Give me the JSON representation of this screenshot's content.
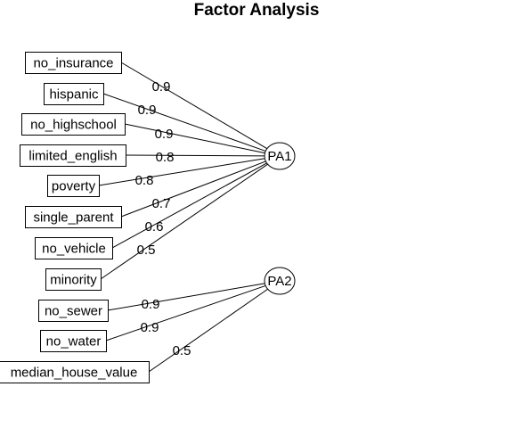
{
  "title": "Factor Analysis",
  "factors": [
    {
      "id": "PA1",
      "label": "PA1"
    },
    {
      "id": "PA2",
      "label": "PA2"
    }
  ],
  "variables": [
    {
      "id": "no_insurance",
      "label": "no_insurance"
    },
    {
      "id": "hispanic",
      "label": "hispanic"
    },
    {
      "id": "no_highschool",
      "label": "no_highschool"
    },
    {
      "id": "limited_english",
      "label": "limited_english"
    },
    {
      "id": "poverty",
      "label": "poverty"
    },
    {
      "id": "single_parent",
      "label": "single_parent"
    },
    {
      "id": "no_vehicle",
      "label": "no_vehicle"
    },
    {
      "id": "minority",
      "label": "minority"
    },
    {
      "id": "no_sewer",
      "label": "no_sewer"
    },
    {
      "id": "no_water",
      "label": "no_water"
    },
    {
      "id": "median_house_value",
      "label": "median_house_value"
    }
  ],
  "loadings": [
    {
      "factor": "PA1",
      "variable": "no_insurance",
      "label": "0.9"
    },
    {
      "factor": "PA1",
      "variable": "hispanic",
      "label": "0.9"
    },
    {
      "factor": "PA1",
      "variable": "no_highschool",
      "label": "0.9"
    },
    {
      "factor": "PA1",
      "variable": "limited_english",
      "label": "0.8"
    },
    {
      "factor": "PA1",
      "variable": "poverty",
      "label": "0.8"
    },
    {
      "factor": "PA1",
      "variable": "single_parent",
      "label": "0.7"
    },
    {
      "factor": "PA1",
      "variable": "no_vehicle",
      "label": "0.6"
    },
    {
      "factor": "PA1",
      "variable": "minority",
      "label": "0.5"
    },
    {
      "factor": "PA2",
      "variable": "no_sewer",
      "label": "0.9"
    },
    {
      "factor": "PA2",
      "variable": "no_water",
      "label": "0.9"
    },
    {
      "factor": "PA2",
      "variable": "median_house_value",
      "label": "0.5"
    }
  ]
}
